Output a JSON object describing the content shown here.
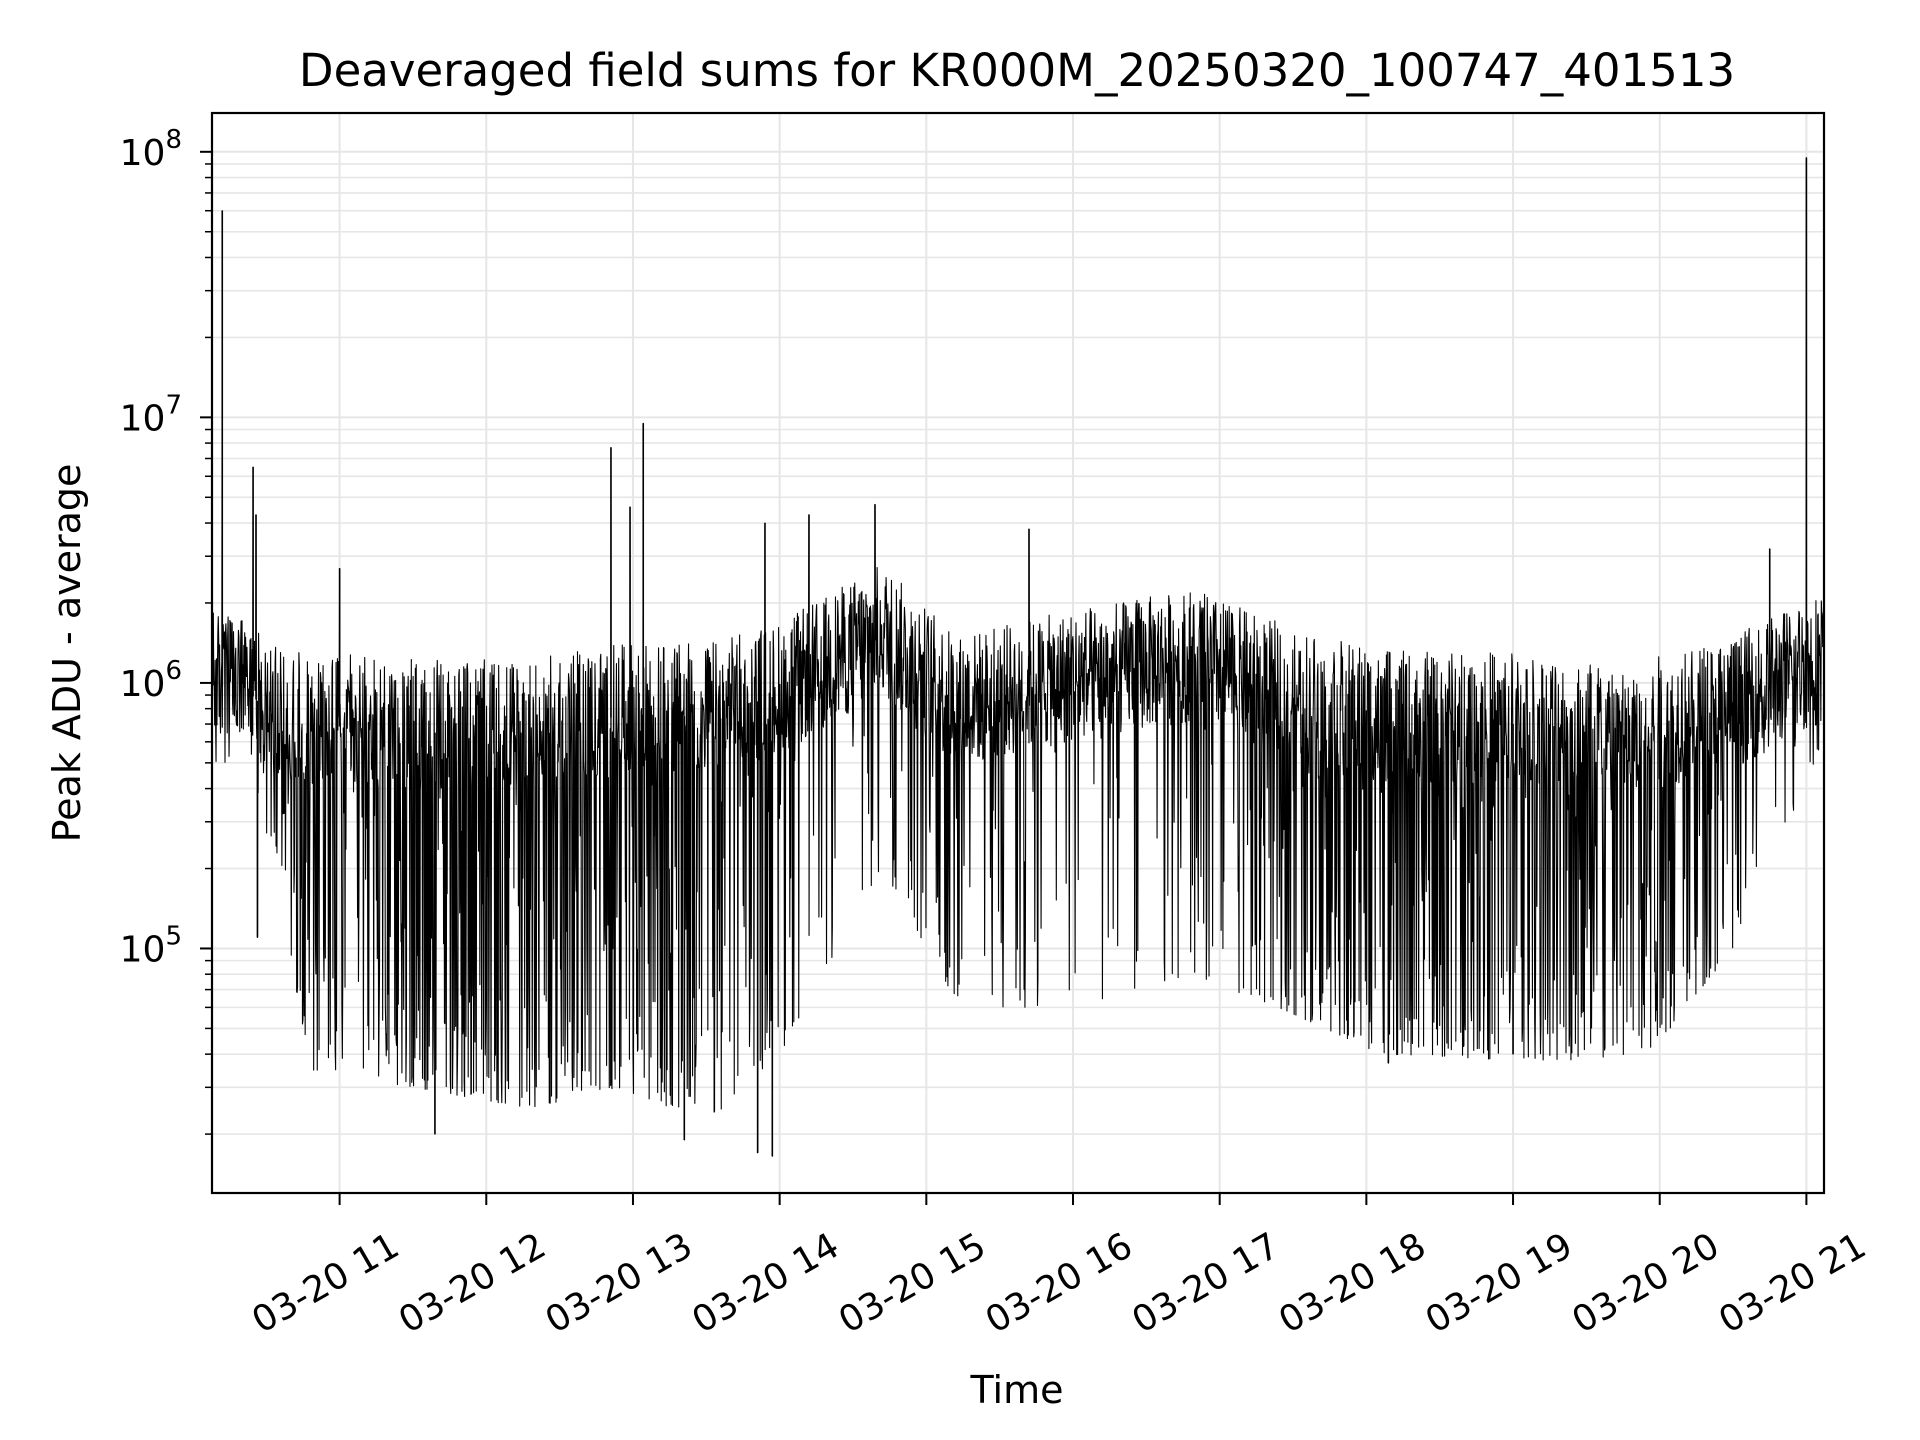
{
  "chart_data": {
    "type": "line",
    "title": "Deaveraged field sums for KR000M_20250320_100747_401513",
    "xlabel": "Time",
    "ylabel": "Peak ADU - average",
    "yscale": "log",
    "ylim": [
      12000,
      140000000
    ],
    "xlim_hours": [
      10.13,
      21.12
    ],
    "x_unit": "hours (2025-03-20)",
    "x_ticks": [
      {
        "value": 11,
        "label": "03-20 11"
      },
      {
        "value": 12,
        "label": "03-20 12"
      },
      {
        "value": 13,
        "label": "03-20 13"
      },
      {
        "value": 14,
        "label": "03-20 14"
      },
      {
        "value": 15,
        "label": "03-20 15"
      },
      {
        "value": 16,
        "label": "03-20 16"
      },
      {
        "value": 17,
        "label": "03-20 17"
      },
      {
        "value": 18,
        "label": "03-20 18"
      },
      {
        "value": 19,
        "label": "03-20 19"
      },
      {
        "value": 20,
        "label": "03-20 20"
      },
      {
        "value": 21,
        "label": "03-20 21"
      }
    ],
    "y_ticks": [
      {
        "value": 100000,
        "base": "10",
        "exp": "5"
      },
      {
        "value": 1000000,
        "base": "10",
        "exp": "6"
      },
      {
        "value": 10000000,
        "base": "10",
        "exp": "7"
      },
      {
        "value": 100000000,
        "base": "10",
        "exp": "8"
      }
    ],
    "grid": true,
    "line_color": "#000000",
    "grid_color": "#e6e6e6",
    "series_description": "dense noisy time series; typical level ~1e6 with drops to ~2e4-5e4",
    "spikes": [
      {
        "x": 10.2,
        "y": 60000000
      },
      {
        "x": 10.41,
        "y": 6500000
      },
      {
        "x": 10.43,
        "y": 4300000
      },
      {
        "x": 10.44,
        "y": 110000
      },
      {
        "x": 11.0,
        "y": 2700000
      },
      {
        "x": 11.65,
        "y": 20000
      },
      {
        "x": 12.85,
        "y": 7700000
      },
      {
        "x": 12.98,
        "y": 4600000
      },
      {
        "x": 13.07,
        "y": 9500000
      },
      {
        "x": 13.35,
        "y": 19000
      },
      {
        "x": 13.85,
        "y": 17000
      },
      {
        "x": 13.9,
        "y": 4000000
      },
      {
        "x": 13.95,
        "y": 16500
      },
      {
        "x": 14.2,
        "y": 4300000
      },
      {
        "x": 14.65,
        "y": 4700000
      },
      {
        "x": 15.7,
        "y": 3800000
      },
      {
        "x": 18.15,
        "y": 37000
      },
      {
        "x": 19.0,
        "y": 40000
      },
      {
        "x": 20.75,
        "y": 3200000
      },
      {
        "x": 21.0,
        "y": 95000000
      }
    ],
    "level_profile": [
      {
        "x": 10.13,
        "base": 1000000,
        "low": 500000,
        "depth": 0.1
      },
      {
        "x": 10.4,
        "base": 900000,
        "low": 500000,
        "depth": 0.15
      },
      {
        "x": 10.6,
        "base": 700000,
        "low": 150000,
        "depth": 0.5
      },
      {
        "x": 10.8,
        "base": 700000,
        "low": 35000,
        "depth": 0.65
      },
      {
        "x": 11.5,
        "base": 650000,
        "low": 30000,
        "depth": 0.7
      },
      {
        "x": 12.3,
        "base": 650000,
        "low": 25000,
        "depth": 0.75
      },
      {
        "x": 12.9,
        "base": 750000,
        "low": 30000,
        "depth": 0.7
      },
      {
        "x": 13.5,
        "base": 750000,
        "low": 22000,
        "depth": 0.55
      },
      {
        "x": 14.0,
        "base": 900000,
        "low": 40000,
        "depth": 0.35
      },
      {
        "x": 14.7,
        "base": 1500000,
        "low": 200000,
        "depth": 0.2
      },
      {
        "x": 15.2,
        "base": 800000,
        "low": 60000,
        "depth": 0.35
      },
      {
        "x": 16.0,
        "base": 1000000,
        "low": 60000,
        "depth": 0.25
      },
      {
        "x": 16.8,
        "base": 1200000,
        "low": 80000,
        "depth": 0.25
      },
      {
        "x": 17.4,
        "base": 900000,
        "low": 60000,
        "depth": 0.55
      },
      {
        "x": 18.1,
        "base": 700000,
        "low": 40000,
        "depth": 0.7
      },
      {
        "x": 19.0,
        "base": 700000,
        "low": 38000,
        "depth": 0.7
      },
      {
        "x": 19.9,
        "base": 650000,
        "low": 38000,
        "depth": 0.65
      },
      {
        "x": 20.5,
        "base": 800000,
        "low": 100000,
        "depth": 0.4
      },
      {
        "x": 21.12,
        "base": 1200000,
        "low": 600000,
        "depth": 0.15
      }
    ]
  }
}
